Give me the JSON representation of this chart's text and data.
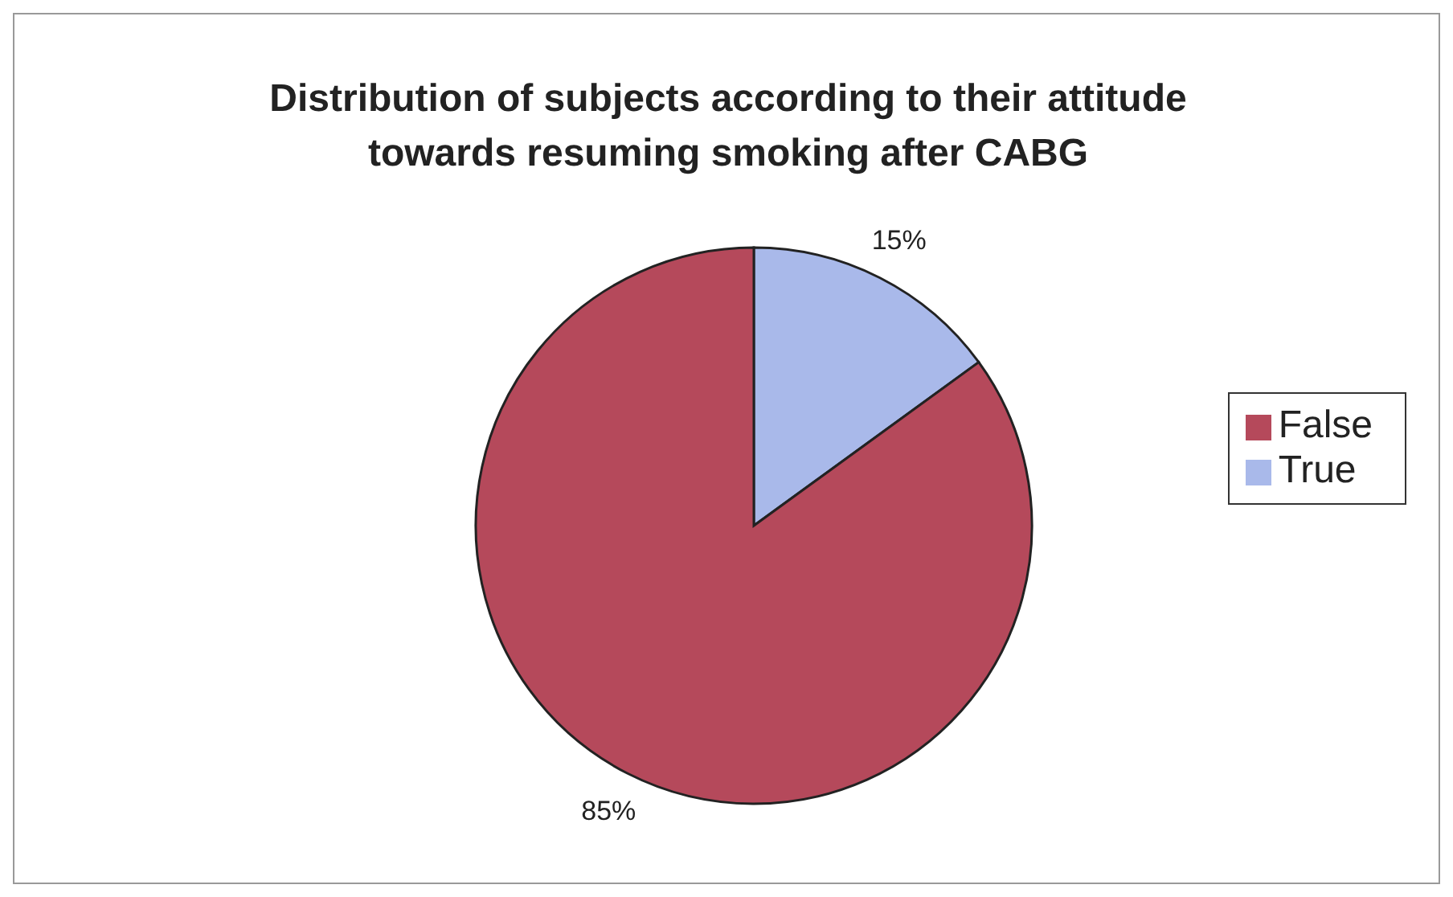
{
  "chart_data": {
    "type": "pie",
    "title": "Distribution of subjects according to their attitude towards resuming smoking after CABG",
    "categories": [
      "True",
      "False"
    ],
    "values": [
      15,
      85
    ],
    "colors": [
      "#a9b9ea",
      "#b5495b"
    ],
    "value_labels": [
      "15%",
      "85%"
    ],
    "legend": "right"
  }
}
